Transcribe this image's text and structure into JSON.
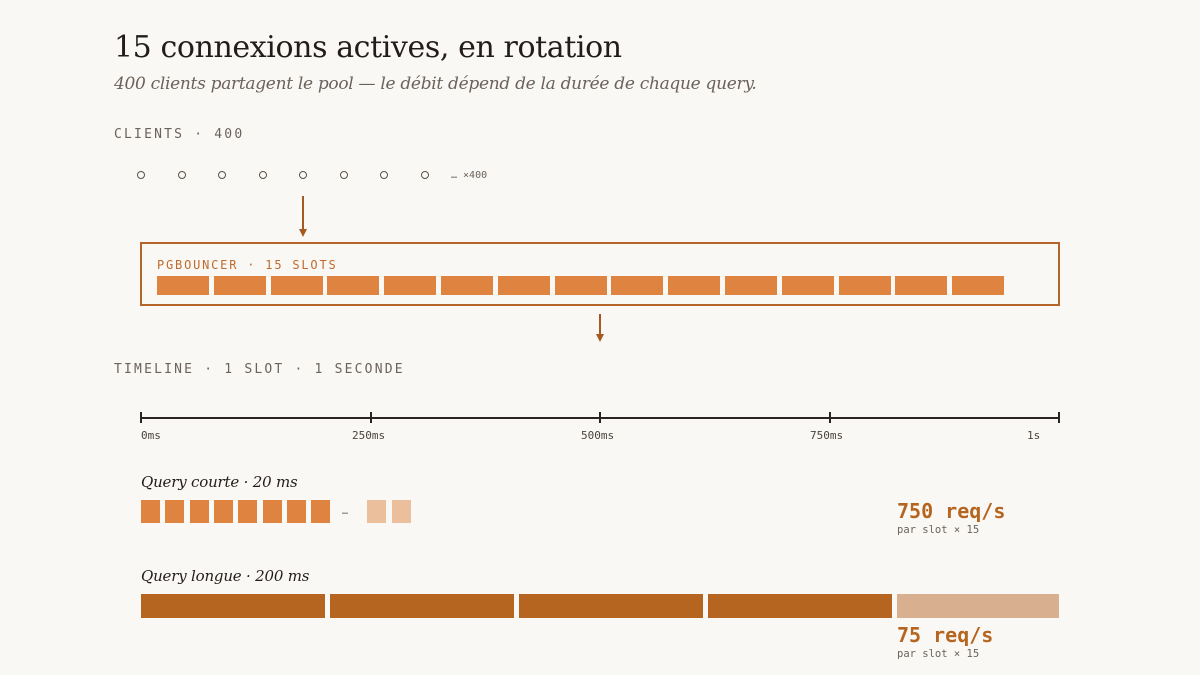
{
  "header": {
    "title": "15 connexions actives, en rotation",
    "subtitle": "400 clients partagent le pool — le débit dépend de la durée de chaque query."
  },
  "clients": {
    "label": "CLIENTS · 400",
    "visible_count": 8,
    "more_label": "… ×400"
  },
  "pool": {
    "label": "PGBOUNCER · 15 SLOTS",
    "slot_count": 15
  },
  "timeline": {
    "label": "TIMELINE · 1 SLOT · 1 SECONDE",
    "ticks": [
      "0ms",
      "250ms",
      "500ms",
      "750ms",
      "1s"
    ],
    "short_query": {
      "label": "Query courte · 20 ms",
      "ellipsis": "…",
      "rate": "750 req/s",
      "rate_note": "par slot × 15"
    },
    "long_query": {
      "label": "Query longue · 200 ms",
      "rate": "75 req/s",
      "rate_note": "par slot × 15"
    }
  },
  "colors": {
    "accent": "#df8440",
    "accent_dark": "#b5651f",
    "accent_light": "#ebbf9c",
    "accent_muted": "#d8b090",
    "background": "#faf8f4"
  }
}
